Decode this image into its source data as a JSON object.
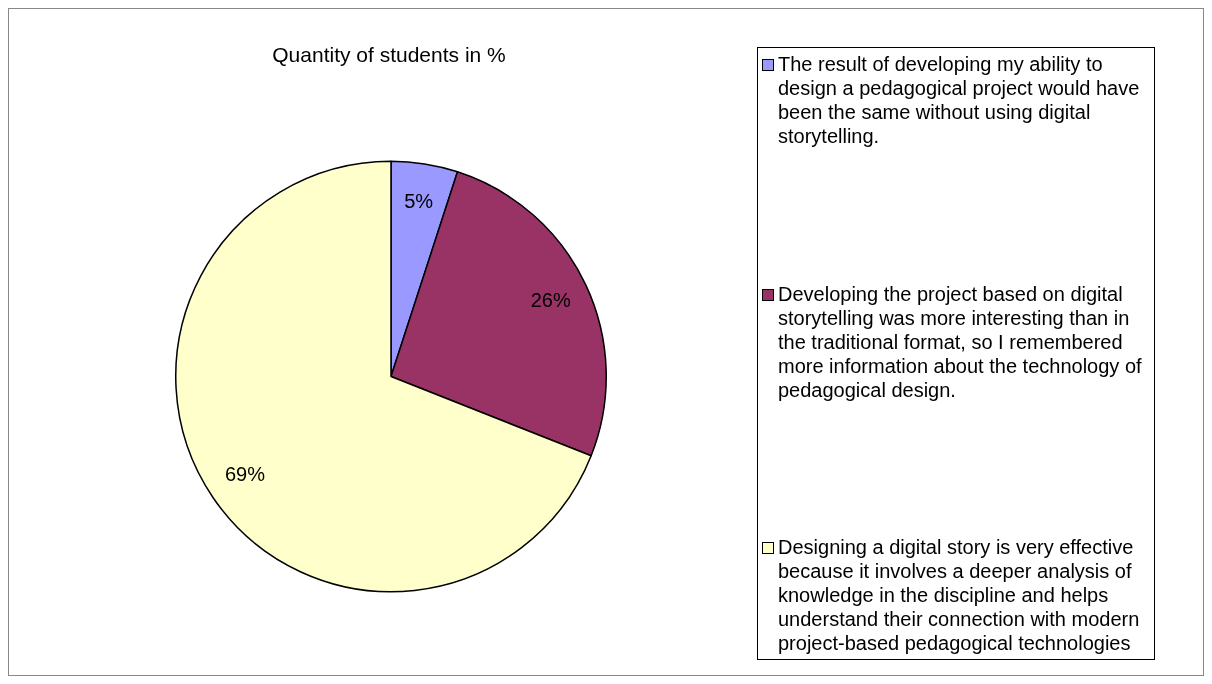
{
  "chart_data": {
    "type": "pie",
    "title": "Quantity of students in %",
    "categories": [
      "The result of developing my ability to design a pedagogical project would have been the same without using digital storytelling.",
      "Developing the project based on digital storytelling was more interesting than in the traditional format, so I remembered more information about the technology of pedagogical design.",
      "Designing a digital story is very effective because it involves a deeper analysis of knowledge in the discipline and helps understand their connection with modern project-based pedagogical technologies"
    ],
    "values": [
      5,
      26,
      69
    ],
    "colors": [
      "#9999ff",
      "#993366",
      "#ffffcc"
    ],
    "value_labels": [
      "5%",
      "26%",
      "69%"
    ],
    "legend": "right"
  }
}
